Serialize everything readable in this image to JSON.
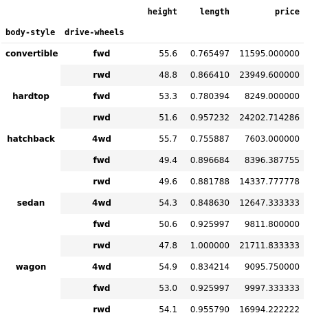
{
  "columns": [
    "height",
    "length",
    "price"
  ],
  "index_names": [
    "body-style",
    "drive-wheels"
  ],
  "groups": [
    {
      "body_style": "convertible",
      "rows": [
        {
          "drive": "fwd",
          "height": "55.6",
          "length": "0.765497",
          "price": "11595.000000"
        },
        {
          "drive": "rwd",
          "height": "48.8",
          "length": "0.866410",
          "price": "23949.600000"
        }
      ]
    },
    {
      "body_style": "hardtop",
      "rows": [
        {
          "drive": "fwd",
          "height": "53.3",
          "length": "0.780394",
          "price": "8249.000000"
        },
        {
          "drive": "rwd",
          "height": "51.6",
          "length": "0.957232",
          "price": "24202.714286"
        }
      ]
    },
    {
      "body_style": "hatchback",
      "rows": [
        {
          "drive": "4wd",
          "height": "55.7",
          "length": "0.755887",
          "price": "7603.000000"
        },
        {
          "drive": "fwd",
          "height": "49.4",
          "length": "0.896684",
          "price": "8396.387755"
        },
        {
          "drive": "rwd",
          "height": "49.6",
          "length": "0.881788",
          "price": "14337.777778"
        }
      ]
    },
    {
      "body_style": "sedan",
      "rows": [
        {
          "drive": "4wd",
          "height": "54.3",
          "length": "0.848630",
          "price": "12647.333333"
        },
        {
          "drive": "fwd",
          "height": "50.6",
          "length": "0.925997",
          "price": "9811.800000"
        },
        {
          "drive": "rwd",
          "height": "47.8",
          "length": "1.000000",
          "price": "21711.833333"
        }
      ]
    },
    {
      "body_style": "wagon",
      "rows": [
        {
          "drive": "4wd",
          "height": "54.9",
          "length": "0.834214",
          "price": "9095.750000"
        },
        {
          "drive": "fwd",
          "height": "53.0",
          "length": "0.925997",
          "price": "9997.333333"
        },
        {
          "drive": "rwd",
          "height": "54.1",
          "length": "0.955790",
          "price": "16994.222222"
        }
      ]
    }
  ]
}
